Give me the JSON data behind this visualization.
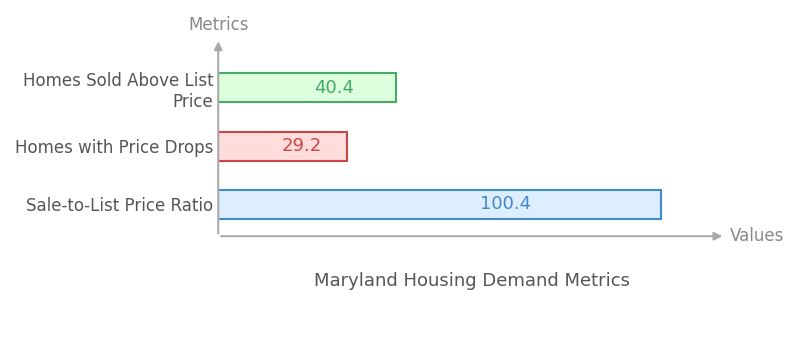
{
  "categories": [
    "Sale-to-List Price Ratio",
    "Homes with Price Drops",
    "Homes Sold Above List\nPrice"
  ],
  "values": [
    100.4,
    29.2,
    40.4
  ],
  "bar_face_colors": [
    "#ddeeff",
    "#ffdddd",
    "#ddffdd"
  ],
  "bar_edge_colors": [
    "#4488cc",
    "#cc4444",
    "#44aa66"
  ],
  "text_colors": [
    "#4488cc",
    "#cc4444",
    "#44aa66"
  ],
  "title": "Maryland Housing Demand Metrics",
  "xlabel": "Values",
  "ylabel": "Metrics",
  "xlim": [
    0,
    115
  ],
  "background_color": "#ffffff",
  "label_fontsize": 12,
  "value_fontsize": 13,
  "title_fontsize": 13,
  "axis_label_fontsize": 12
}
